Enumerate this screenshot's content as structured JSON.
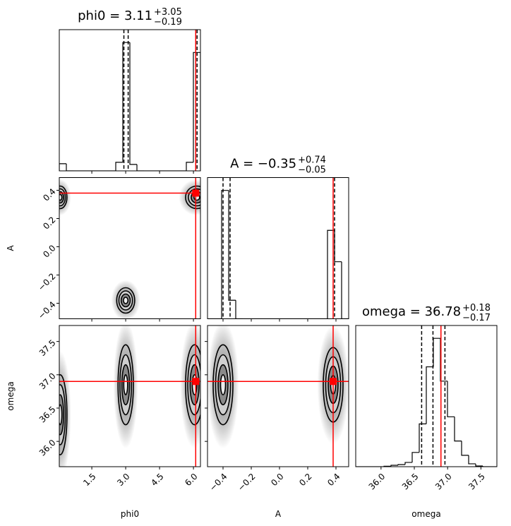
{
  "chart_data": {
    "type": "corner",
    "truth_color": "#ff0000",
    "hist_color": "#000000",
    "parameters": [
      {
        "name": "phi0",
        "title": "phi0 = 3.11",
        "title_plus": "+3.05",
        "title_minus": "−0.19",
        "lim": [
          0.06,
          6.31
        ],
        "ticks": [
          1.5,
          {
            "value": 3,
            "label": "3.0"
          },
          4.5,
          {
            "value": 6,
            "label": "6.0"
          }
        ],
        "truth": 6.1,
        "quantiles": [
          2.92,
          3.11,
          6.16
        ],
        "bins": [
          0.06,
          0.3725,
          0.685,
          0.9975,
          1.31,
          1.6225,
          1.935,
          2.2475,
          2.56,
          2.8725,
          3.185,
          3.4975,
          3.81,
          4.1225,
          4.435,
          4.7475,
          5.06,
          5.3725,
          5.685,
          5.9975,
          6.31
        ],
        "counts": [
          50,
          0,
          0,
          0,
          0,
          0,
          0,
          0,
          60,
          900,
          45,
          0,
          0,
          0,
          0,
          0,
          0,
          0,
          60,
          830
        ],
        "hist_ylim": [
          0,
          990
        ],
        "vs": []
      },
      {
        "name": "A",
        "title": "A = −0.35",
        "title_plus": "+0.74",
        "title_minus": "−0.05",
        "lim": [
          -0.51,
          0.49
        ],
        "ticks": [
          {
            "value": -0.4,
            "label": "−0.4"
          },
          {
            "value": -0.2,
            "label": "−0.2"
          },
          {
            "value": 0,
            "label": "0.0"
          },
          0.2,
          0.4
        ],
        "truth": 0.38,
        "quantiles": [
          -0.4,
          -0.35,
          0.39
        ],
        "bins": [
          -0.51,
          -0.46,
          -0.41,
          -0.36,
          -0.31,
          -0.26,
          -0.21,
          -0.16,
          -0.11,
          -0.06,
          -0.01,
          0.04,
          0.09,
          0.14,
          0.19,
          0.24,
          0.29,
          0.34,
          0.39,
          0.44,
          0.49
        ],
        "counts": [
          0,
          0,
          900,
          130,
          0,
          0,
          0,
          0,
          0,
          0,
          0,
          0,
          0,
          0,
          0,
          0,
          0,
          620,
          400,
          0
        ],
        "hist_ylim": [
          0,
          990
        ],
        "vs": [
          [
            {
              "x": 3.0,
              "y": -0.38,
              "sx": 0.2,
              "sy": 0.045
            },
            {
              "x": 6.15,
              "y": 0.35,
              "sx": 0.25,
              "sy": 0.04
            },
            {
              "x": 0.1,
              "y": 0.35,
              "sx": 0.15,
              "sy": 0.04
            }
          ]
        ]
      },
      {
        "name": "omega",
        "title": "omega = 36.78",
        "title_plus": "+0.18",
        "title_minus": "−0.17",
        "lim": [
          35.62,
          37.74
        ],
        "ticks": [
          {
            "value": 36,
            "label": "36.0"
          },
          36.5,
          {
            "value": 37,
            "label": "37.0"
          },
          37.5
        ],
        "truth": 36.9,
        "quantiles": [
          36.61,
          36.78,
          36.96
        ],
        "bins": [
          35.62,
          35.726,
          35.832,
          35.938,
          36.044,
          36.15,
          36.256,
          36.362,
          36.468,
          36.574,
          36.68,
          36.786,
          36.892,
          36.998,
          37.104,
          37.21,
          37.316,
          37.422,
          37.528,
          37.634,
          37.74
        ],
        "counts": [
          0,
          0,
          0,
          0,
          3,
          10,
          15,
          30,
          100,
          300,
          700,
          900,
          600,
          350,
          180,
          80,
          20,
          5,
          0,
          0
        ],
        "hist_ylim": [
          0,
          990
        ],
        "vs": [
          [
            {
              "x": 3.0,
              "y": 36.85,
              "sx": 0.17,
              "sy": 0.3
            },
            {
              "x": 6.05,
              "y": 36.85,
              "sx": 0.2,
              "sy": 0.3
            },
            {
              "x": 0.1,
              "y": 36.4,
              "sx": 0.15,
              "sy": 0.3
            }
          ],
          [
            {
              "x": -0.4,
              "y": 36.85,
              "sx": 0.035,
              "sy": 0.3
            },
            {
              "x": 0.38,
              "y": 36.85,
              "sx": 0.035,
              "sy": 0.28
            }
          ]
        ]
      }
    ]
  }
}
